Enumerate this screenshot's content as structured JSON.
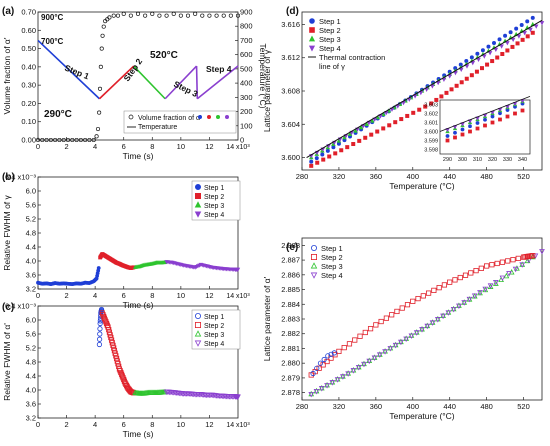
{
  "chart_data": [
    {
      "id": "a",
      "panel_label": "(a)",
      "type": "scatter",
      "xlabel": "Time (s)",
      "ylabel": "Volume fraction of α'",
      "y2label": "Temperature (°C)",
      "xlim": [
        0,
        14000
      ],
      "ylim": [
        0,
        0.7
      ],
      "y2lim": [
        0,
        900
      ],
      "x_ticks": [
        0,
        2,
        4,
        6,
        8,
        10,
        12
      ],
      "x_exponent": "14 x10³",
      "y_ticks": [
        0.0,
        0.1,
        0.2,
        0.3,
        0.4,
        0.5,
        0.6,
        0.7
      ],
      "y2_ticks": [
        0,
        100,
        200,
        300,
        400,
        500,
        600,
        700,
        800,
        900
      ],
      "annotations": [
        "900°C",
        "700°C",
        "520°C",
        "290°C",
        "Step 1",
        "Step 2",
        "Step 3",
        "Step 4"
      ],
      "legend": {
        "placement": "bottom-right",
        "entries": [
          "Volume fraction of α'",
          "Temperature"
        ]
      },
      "series": [
        {
          "name": "Volume fraction of α'",
          "kind": "markers",
          "x": [
            0,
            300,
            600,
            900,
            1200,
            1500,
            1800,
            2100,
            2400,
            2700,
            3000,
            3300,
            3600,
            3900,
            4100,
            4200,
            4280,
            4340,
            4400,
            4460,
            4520,
            4600,
            4700,
            4850,
            5000,
            5300,
            5600,
            6000,
            6500,
            7000,
            7500,
            8000,
            8500,
            9000,
            9500,
            10000,
            10500,
            11000,
            11500,
            12000,
            12500,
            13000,
            13500,
            14000
          ],
          "y": [
            0,
            0,
            0,
            0,
            0,
            0,
            0,
            0,
            0,
            0,
            0,
            0,
            0,
            0,
            0.02,
            0.06,
            0.15,
            0.28,
            0.4,
            0.5,
            0.57,
            0.62,
            0.65,
            0.66,
            0.67,
            0.68,
            0.68,
            0.69,
            0.68,
            0.69,
            0.68,
            0.69,
            0.68,
            0.68,
            0.69,
            0.68,
            0.68,
            0.69,
            0.68,
            0.68,
            0.68,
            0.68,
            0.68,
            0.68
          ]
        },
        {
          "name": "Temperature",
          "kind": "line",
          "x": [
            0,
            4300,
            6700,
            8900,
            11100,
            11150,
            14000
          ],
          "y": [
            700,
            290,
            520,
            290,
            520,
            290,
            520
          ],
          "segment_colors": [
            "#1f3fd6",
            "#e0202a",
            "#2ec42e",
            "#8a3fcf"
          ]
        }
      ]
    },
    {
      "id": "b",
      "panel_label": "(b)",
      "type": "scatter",
      "xlabel": "Time (s)",
      "ylabel": "Relative FWHM of γ",
      "xlim": [
        0,
        14000
      ],
      "ylim": [
        3.2,
        6.4
      ],
      "x_ticks": [
        0,
        2,
        4,
        6,
        8,
        10,
        12
      ],
      "x_exponent": "14 x10³",
      "y_ticks": [
        3.2,
        3.6,
        4.0,
        4.4,
        4.8,
        5.2,
        5.6,
        6.0,
        6.4
      ],
      "y_tick_labels": [
        "3.2",
        "3.6",
        "4.0",
        "4.4",
        "4.8",
        "5.2",
        "5.6",
        "6.0",
        "6.4 x10⁻³"
      ],
      "legend": {
        "placement": "top-right",
        "entries": [
          "Step 1",
          "Step 2",
          "Step 3",
          "Step 4"
        ]
      },
      "series": [
        {
          "name": "Step 1",
          "x": [
            0,
            300,
            600,
            900,
            1200,
            1500,
            1800,
            2100,
            2400,
            2700,
            3000,
            3300,
            3600,
            3900,
            4100,
            4250
          ],
          "y": [
            3.38,
            3.35,
            3.36,
            3.34,
            3.37,
            3.35,
            3.36,
            3.35,
            3.34,
            3.36,
            3.35,
            3.38,
            3.37,
            3.42,
            3.5,
            3.8
          ]
        },
        {
          "name": "Step 2",
          "x": [
            4350,
            4500,
            4700,
            4900,
            5100,
            5300,
            5500,
            5700,
            5900,
            6100,
            6300,
            6500,
            6700
          ],
          "y": [
            4.1,
            4.2,
            4.15,
            4.1,
            4.05,
            4.0,
            3.95,
            3.92,
            3.88,
            3.85,
            3.82,
            3.8,
            3.82
          ]
        },
        {
          "name": "Step 3",
          "x": [
            6800,
            7100,
            7400,
            7700,
            8000,
            8300,
            8600,
            8900
          ],
          "y": [
            3.82,
            3.84,
            3.88,
            3.9,
            3.92,
            3.95,
            3.95,
            3.96
          ]
        },
        {
          "name": "Step 4",
          "x": [
            9000,
            9400,
            9800,
            10200,
            10600,
            11000,
            11400,
            11800,
            12200,
            12600,
            13000,
            13400,
            13800,
            14000
          ],
          "y": [
            3.98,
            3.96,
            3.92,
            3.88,
            3.85,
            3.82,
            3.9,
            3.86,
            3.82,
            3.8,
            3.78,
            3.77,
            3.76,
            3.76
          ]
        }
      ]
    },
    {
      "id": "c",
      "panel_label": "(c)",
      "type": "scatter",
      "xlabel": "Time (s)",
      "ylabel": "Relative FWHM of α'",
      "xlim": [
        0,
        14000
      ],
      "ylim": [
        3.2,
        6.4
      ],
      "x_ticks": [
        0,
        2,
        4,
        6,
        8,
        10,
        12
      ],
      "x_exponent": "14 x10³",
      "y_ticks": [
        3.2,
        3.6,
        4.0,
        4.4,
        4.8,
        5.2,
        5.6,
        6.0,
        6.4
      ],
      "y_tick_labels": [
        "3.2",
        "3.6",
        "4.0",
        "4.4",
        "4.8",
        "5.2",
        "5.6",
        "6.0",
        "6.4 x10⁻³"
      ],
      "legend": {
        "placement": "top-right",
        "entries": [
          "Step 1",
          "Step 2",
          "Step 3",
          "Step 4"
        ]
      },
      "series": [
        {
          "name": "Step 1",
          "x": [
            4300,
            4350,
            4400,
            4450
          ],
          "y": [
            5.3,
            5.9,
            6.2,
            6.3
          ]
        },
        {
          "name": "Step 2",
          "x": [
            4500,
            4700,
            4900,
            5100,
            5300,
            5500,
            5700,
            5900,
            6100,
            6300,
            6500,
            6700
          ],
          "y": [
            6.2,
            6.0,
            5.8,
            5.5,
            5.2,
            4.9,
            4.6,
            4.4,
            4.2,
            4.05,
            3.95,
            3.92
          ]
        },
        {
          "name": "Step 3",
          "x": [
            6800,
            7100,
            7400,
            7700,
            8000,
            8300,
            8600,
            8900
          ],
          "y": [
            3.92,
            3.9,
            3.9,
            3.92,
            3.92,
            3.92,
            3.93,
            3.94
          ]
        },
        {
          "name": "Step 4",
          "x": [
            9000,
            9400,
            9800,
            10200,
            10600,
            11000,
            11400,
            11800,
            12200,
            12600,
            13000,
            13400,
            13800,
            14000
          ],
          "y": [
            3.95,
            3.94,
            3.92,
            3.9,
            3.9,
            3.88,
            3.88,
            3.86,
            3.86,
            3.84,
            3.83,
            3.82,
            3.82,
            3.81
          ]
        }
      ]
    },
    {
      "id": "d",
      "panel_label": "(d)",
      "type": "scatter",
      "xlabel": "Temperature (°C)",
      "ylabel": "Lattice parameter of γ",
      "xlim": [
        280,
        540
      ],
      "ylim": [
        3.5985,
        3.6175
      ],
      "x_ticks": [
        280,
        320,
        360,
        400,
        440,
        480,
        520
      ],
      "y_ticks": [
        3.6,
        3.604,
        3.608,
        3.612,
        3.616
      ],
      "legend": {
        "placement": "top-right",
        "entries": [
          "Step 1",
          "Step 2",
          "Step 3",
          "Step 4",
          "Thermal contraction line of γ"
        ]
      },
      "inset": {
        "xlim": [
          285,
          345
        ],
        "ylim": [
          3.5975,
          3.6035
        ],
        "x_ticks": [
          290,
          300,
          310,
          320,
          330,
          340
        ],
        "y_ticks": [
          3.598,
          3.599,
          3.6,
          3.601,
          3.602,
          3.603
        ]
      },
      "series": [
        {
          "name": "Step 1",
          "x": [
            290,
            530
          ],
          "y": [
            3.5995,
            3.6168
          ]
        },
        {
          "name": "Step 2",
          "x": [
            290,
            420,
            530
          ],
          "y": [
            3.599,
            3.6065,
            3.615
          ]
        },
        {
          "name": "Step 3",
          "x": [
            290,
            530
          ],
          "y": [
            3.6,
            3.616
          ]
        },
        {
          "name": "Step 4",
          "x": [
            290,
            540
          ],
          "y": [
            3.6002,
            3.6162
          ]
        },
        {
          "name": "Thermal contraction line of γ",
          "kind": "line",
          "x": [
            285,
            540
          ],
          "y": [
            3.6,
            3.6165
          ]
        }
      ]
    },
    {
      "id": "e",
      "panel_label": "(e)",
      "type": "scatter",
      "xlabel": "Temperature (°C)",
      "ylabel": "Lattice parameter of α'",
      "xlim": [
        280,
        540
      ],
      "ylim": [
        2.8775,
        2.8885
      ],
      "x_ticks": [
        280,
        320,
        360,
        400,
        440,
        480,
        520
      ],
      "y_ticks": [
        2.878,
        2.879,
        2.88,
        2.881,
        2.882,
        2.883,
        2.884,
        2.885,
        2.886,
        2.887,
        2.888
      ],
      "legend": {
        "placement": "top-left",
        "entries": [
          "Step 1",
          "Step 2",
          "Step 3",
          "Step 4"
        ]
      },
      "series": [
        {
          "name": "Step 1",
          "x": [
            292,
            300,
            308,
            315
          ],
          "y": [
            2.8793,
            2.88,
            2.8805,
            2.8807
          ]
        },
        {
          "name": "Step 2",
          "x": [
            290,
            320,
            360,
            400,
            440,
            480,
            520,
            530
          ],
          "y": [
            2.8792,
            2.8808,
            2.8826,
            2.8842,
            2.8855,
            2.8866,
            2.8872,
            2.8873
          ]
        },
        {
          "name": "Step 3",
          "x": [
            290,
            330,
            370,
            410,
            450,
            490,
            530
          ],
          "y": [
            2.8779,
            2.8793,
            2.8808,
            2.8823,
            2.8839,
            2.8854,
            2.8872
          ]
        },
        {
          "name": "Step 4",
          "x": [
            290,
            330,
            370,
            410,
            450,
            490,
            540
          ],
          "y": [
            2.8779,
            2.8793,
            2.8808,
            2.8823,
            2.8839,
            2.8855,
            2.8876
          ]
        }
      ]
    }
  ],
  "colors": {
    "step1": "#1f3fd6",
    "step2": "#e0202a",
    "step3": "#2ec42e",
    "step4": "#8a3fcf",
    "black": "#111111"
  }
}
